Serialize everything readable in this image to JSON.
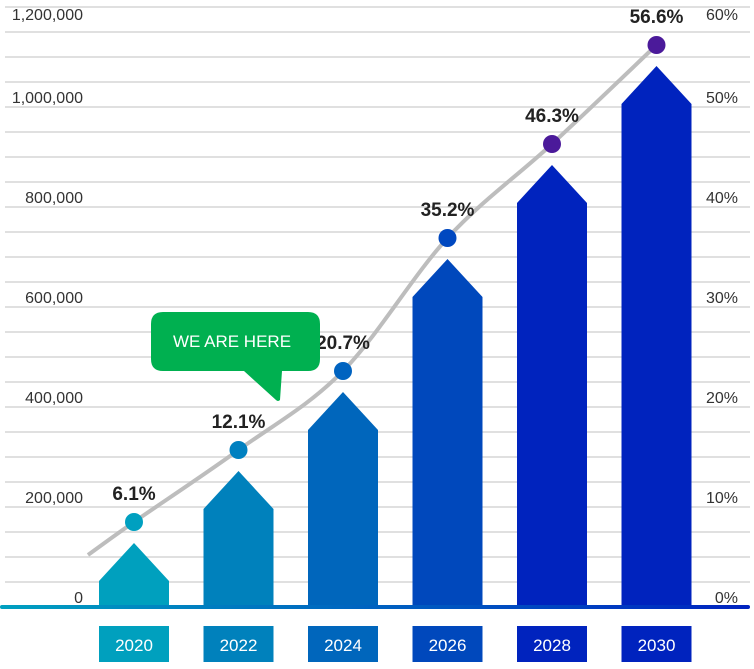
{
  "chart_data": {
    "type": "bar",
    "title": "",
    "xlabel": "",
    "ylabel": "",
    "categories": [
      "2020",
      "2022",
      "2024",
      "2026",
      "2028",
      "2030"
    ],
    "values": [
      128000,
      272000,
      430000,
      696000,
      884000,
      1082000
    ],
    "line_series": {
      "values": [
        6.1,
        12.1,
        20.7,
        35.2,
        46.3,
        56.6
      ],
      "labels": [
        "6.1%",
        "12.1%",
        "20.7%",
        "35.2%",
        "46.3%",
        "56.6%"
      ],
      "color": "#bdbdbd"
    },
    "ylim": [
      0,
      1200000
    ],
    "y_ticks": [
      "0",
      "200,000",
      "400,000",
      "600,000",
      "800,000",
      "1,000,000",
      "1,200,000"
    ],
    "y2lim": [
      0,
      60
    ],
    "y2_ticks": [
      "0%",
      "10%",
      "20%",
      "30%",
      "40%",
      "50%",
      "60%"
    ],
    "grid": true,
    "bar_colors": [
      "#00a0be",
      "#0081bc",
      "#0066bc",
      "#0048bc",
      "#0023be",
      "#0023be"
    ],
    "dot_colors": [
      "#00a0c0",
      "#0080c0",
      "#0063c0",
      "#0048c0",
      "#4b1a9a",
      "#4b1a9a"
    ],
    "annotation": {
      "text": "WE ARE HERE",
      "color": "#00b050",
      "category": "2022"
    }
  }
}
